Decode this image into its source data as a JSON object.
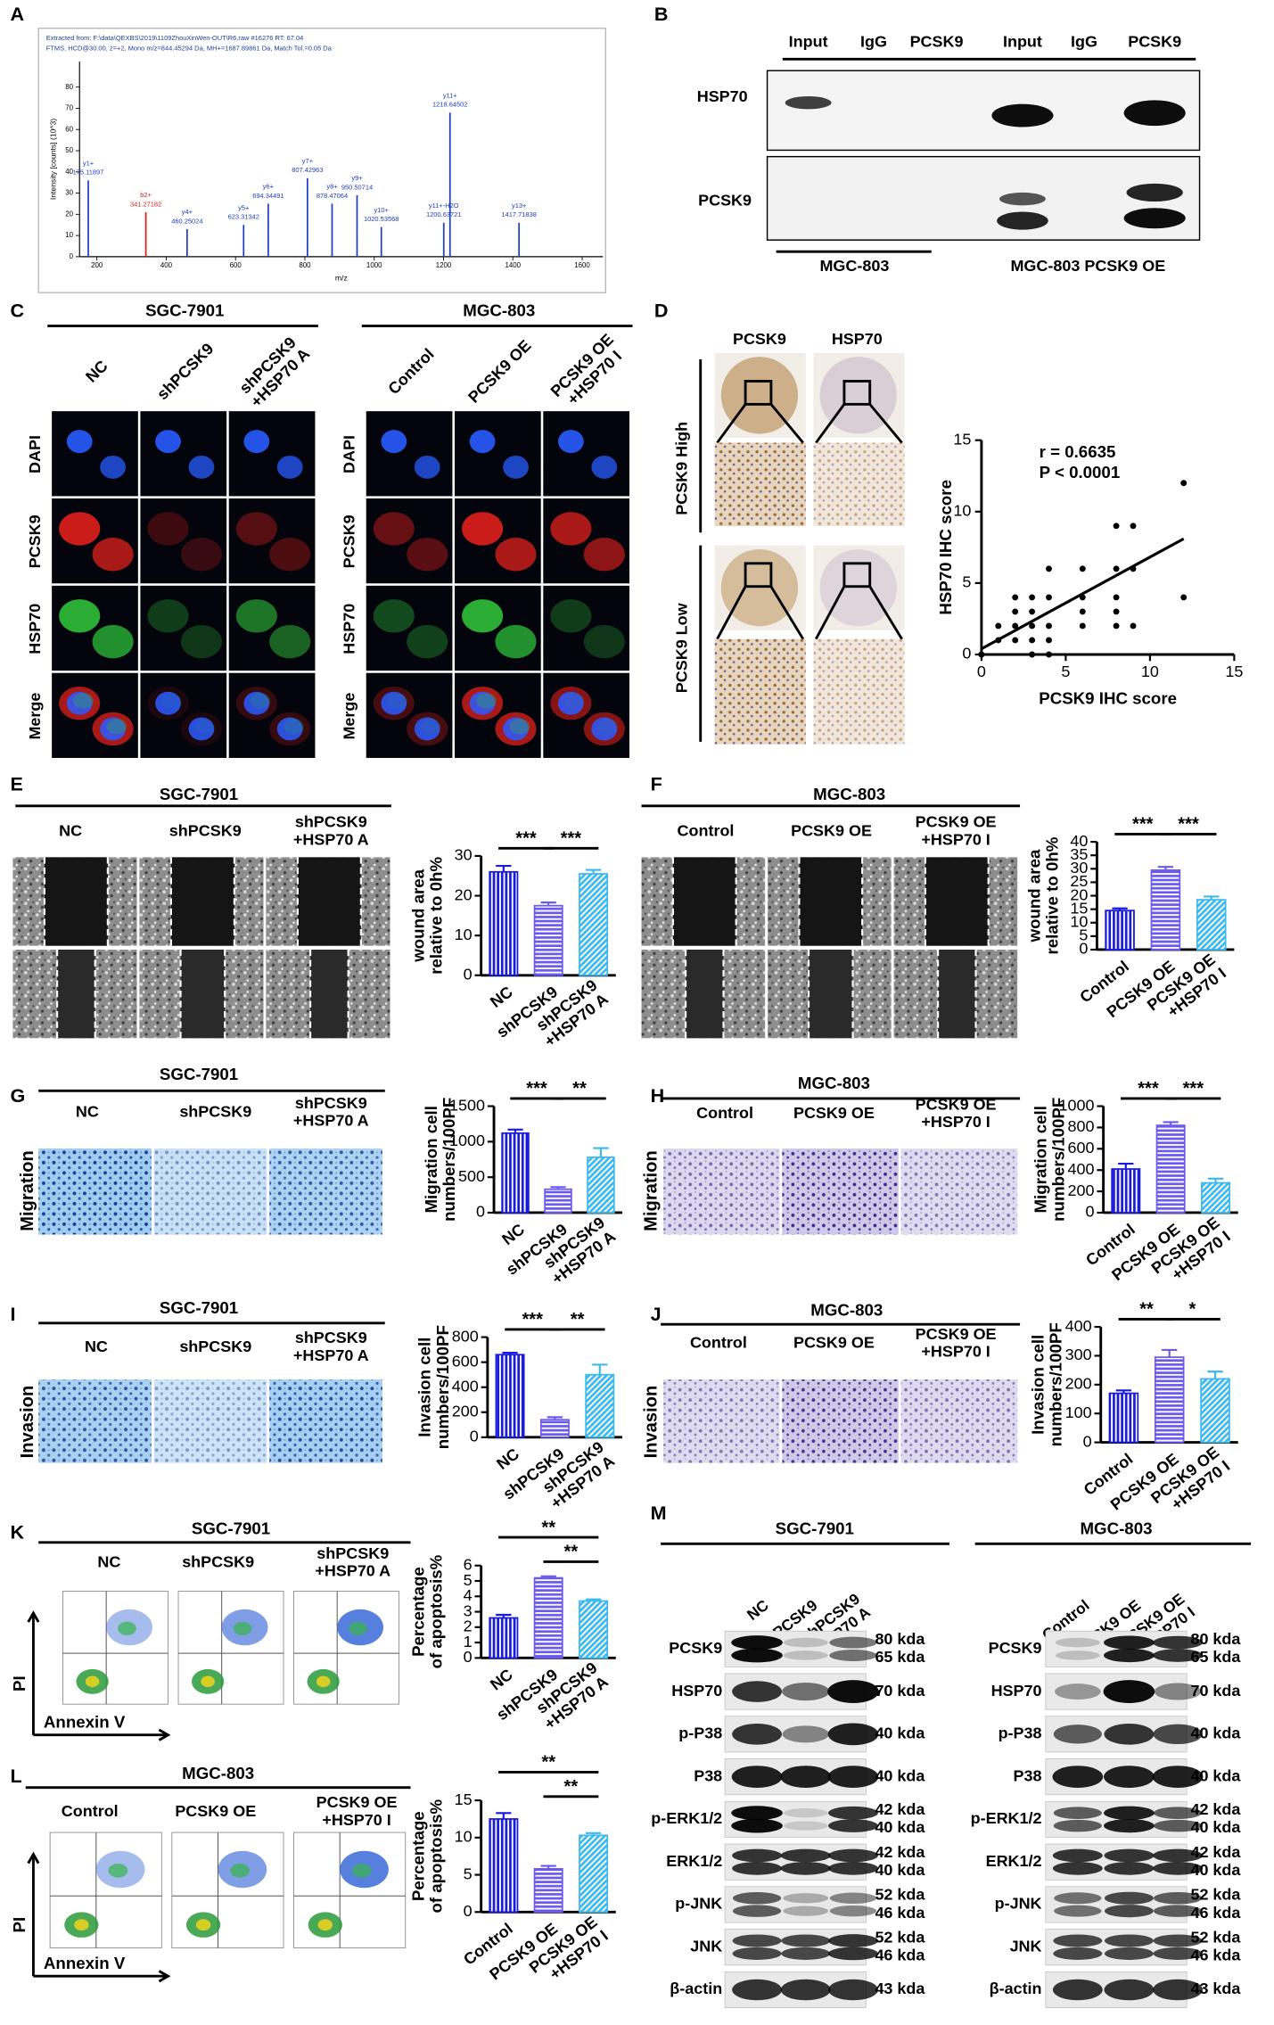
{
  "A": {
    "letter": "A",
    "header": [
      "Extracted from: F:\\data\\QEXBS\\2019\\1109ZhouXinWen-OUT\\R6.raw  #16276  RT: 67.04",
      "FTMS, HCD@30.00, z=+2, Mono m/z=844.45294 Da, MH+=1687.89861 Da, Match Tol.=0.05 Da"
    ],
    "ylabel": "Intensity [counts] (10^3)",
    "xlabel": "m/z",
    "xlim": [
      150,
      1660
    ],
    "ylim": [
      0,
      92
    ],
    "xticks": [
      200,
      400,
      600,
      800,
      1000,
      1200,
      1400,
      1600
    ],
    "yticks": [
      0,
      10,
      20,
      30,
      40,
      50,
      60,
      70,
      80
    ],
    "peaks": [
      {
        "label": "y1+",
        "mz": 175.11897,
        "intensity": 36,
        "color": "#1f3fbf"
      },
      {
        "label": "b2+",
        "mz": 341.27182,
        "intensity": 21,
        "color": "#d62020"
      },
      {
        "label": "y4+",
        "mz": 460.25024,
        "intensity": 13,
        "color": "#1f3fbf"
      },
      {
        "label": "y5+",
        "mz": 623.31342,
        "intensity": 15,
        "color": "#1f3fbf"
      },
      {
        "label": "y6+",
        "mz": 694.34491,
        "intensity": 25,
        "color": "#1f3fbf"
      },
      {
        "label": "y7+",
        "mz": 807.42963,
        "intensity": 37,
        "color": "#1f3fbf"
      },
      {
        "label": "y8+",
        "mz": 878.47064,
        "intensity": 25,
        "color": "#1f3fbf"
      },
      {
        "label": "y9+",
        "mz": 950.50714,
        "intensity": 29,
        "color": "#1f3fbf"
      },
      {
        "label": "y10+",
        "mz": 1020.53568,
        "intensity": 14,
        "color": "#1f3fbf"
      },
      {
        "label": "y11+-H2O",
        "mz": 1200.63721,
        "intensity": 16,
        "color": "#1f3fbf"
      },
      {
        "label": "y11+",
        "mz": 1218.64502,
        "intensity": 68,
        "color": "#1f3fbf"
      },
      {
        "label": "y13+",
        "mz": 1417.71838,
        "intensity": 16,
        "color": "#1f3fbf"
      }
    ]
  },
  "B": {
    "letter": "B",
    "lanes": [
      "Input",
      "IgG",
      "PCSK9",
      "Input",
      "IgG",
      "PCSK9"
    ],
    "rows": [
      "HSP70",
      "PCSK9"
    ],
    "groups": [
      "MGC-803",
      "MGC-803 PCSK9 OE"
    ]
  },
  "C": {
    "letter": "C",
    "groups": [
      {
        "cell_line": "SGC-7901",
        "columns": [
          "NC",
          "shPCSK9",
          "shPCSK9 +HSP70 A"
        ]
      },
      {
        "cell_line": "MGC-803",
        "columns": [
          "Control",
          "PCSK9 OE",
          "PCSK9 OE +HSP70 I"
        ]
      }
    ],
    "rows": [
      "DAPI",
      "PCSK9",
      "HSP70",
      "Merge"
    ]
  },
  "D": {
    "letter": "D",
    "columns": [
      "PCSK9",
      "HSP70"
    ],
    "rows": [
      "PCSK9 High",
      "PCSK9 Low"
    ],
    "chart_data": {
      "type": "scatter",
      "annotations": [
        "r = 0.6635",
        "P < 0.0001"
      ],
      "x_label": "PCSK9 IHC score",
      "y_label": "HSP70 IHC score",
      "xlim": [
        0,
        15
      ],
      "ylim": [
        0,
        15
      ],
      "xticks": [
        0,
        5,
        10,
        15
      ],
      "yticks": [
        0,
        5,
        10,
        15
      ],
      "color": "#000000",
      "x": [
        0,
        1,
        1,
        2,
        2,
        2,
        2,
        3,
        3,
        3,
        3,
        3,
        4,
        4,
        4,
        4,
        4,
        6,
        6,
        6,
        6,
        8,
        8,
        8,
        8,
        8,
        9,
        9,
        9,
        12,
        12
      ],
      "y": [
        0,
        1,
        2,
        1,
        2,
        3,
        4,
        0,
        1,
        2,
        3,
        4,
        0,
        1,
        2,
        4,
        6,
        2,
        3,
        4,
        6,
        2,
        3,
        4,
        6,
        9,
        2,
        6,
        9,
        4,
        12
      ],
      "fit_x": [
        0,
        12
      ],
      "fit_y": [
        0.4,
        8.1
      ]
    }
  },
  "E": {
    "letter": "E",
    "cell_line": "SGC-7901",
    "chart_data": {
      "type": "bar",
      "y_label": [
        "wound area",
        "relative to 0h%"
      ],
      "categories": [
        "NC",
        "shPCSK9",
        "shPCSK9 +HSP70 A"
      ],
      "values": [
        26,
        17.5,
        25.5
      ],
      "errors": [
        1.5,
        0.8,
        1
      ],
      "ylim": [
        0,
        30
      ],
      "yticks": [
        0,
        10,
        20,
        30
      ],
      "colors": [
        "#1a1adb",
        "#6a5af0",
        "#3cb8f0"
      ],
      "significance": [
        "***",
        "***"
      ]
    }
  },
  "F": {
    "letter": "F",
    "cell_line": "MGC-803",
    "chart_data": {
      "type": "bar",
      "y_label": [
        "wound area",
        "relative to 0h%"
      ],
      "categories": [
        "Control",
        "PCSK9 OE",
        "PCSK9 OE +HSP70 I"
      ],
      "values": [
        14.5,
        29.5,
        18.5
      ],
      "errors": [
        0.8,
        1.2,
        1.2
      ],
      "ylim": [
        0,
        40
      ],
      "yticks": [
        0,
        5,
        10,
        15,
        20,
        25,
        30,
        35,
        40
      ],
      "colors": [
        "#1a1adb",
        "#6a5af0",
        "#3cb8f0"
      ],
      "significance": [
        "***",
        "***"
      ]
    }
  },
  "G": {
    "letter": "G",
    "cell_line": "SGC-7901",
    "row_label": "Migration",
    "chart_data": {
      "type": "bar",
      "y_label": [
        "Migration cell",
        "numbers/100PF"
      ],
      "categories": [
        "NC",
        "shPCSK9",
        "shPCSK9 +HSP70 A"
      ],
      "values": [
        1120,
        330,
        780
      ],
      "errors": [
        50,
        30,
        130
      ],
      "ylim": [
        0,
        1500
      ],
      "yticks": [
        0,
        500,
        1000,
        1500
      ],
      "colors": [
        "#1a1adb",
        "#6a5af0",
        "#3cb8f0"
      ],
      "significance": [
        "***",
        "**"
      ]
    }
  },
  "H": {
    "letter": "H",
    "cell_line": "MGC-803",
    "row_label": "Migration",
    "chart_data": {
      "type": "bar",
      "y_label": [
        "Migration cell",
        "numbers/100PF"
      ],
      "categories": [
        "Control",
        "PCSK9 OE",
        "PCSK9 OE +HSP70 I"
      ],
      "values": [
        410,
        820,
        280
      ],
      "errors": [
        50,
        30,
        40
      ],
      "ylim": [
        0,
        1000
      ],
      "yticks": [
        0,
        200,
        400,
        600,
        800,
        1000
      ],
      "colors": [
        "#1a1adb",
        "#6a5af0",
        "#3cb8f0"
      ],
      "significance": [
        "***",
        "***"
      ]
    }
  },
  "I": {
    "letter": "I",
    "cell_line": "SGC-7901",
    "row_label": "Invasion",
    "chart_data": {
      "type": "bar",
      "y_label": [
        "Invasion cell",
        "numbers/100PF"
      ],
      "categories": [
        "NC",
        "shPCSK9",
        "shPCSK9 +HSP70 A"
      ],
      "values": [
        660,
        140,
        500
      ],
      "errors": [
        15,
        20,
        80
      ],
      "ylim": [
        0,
        800
      ],
      "yticks": [
        0,
        200,
        400,
        600,
        800
      ],
      "colors": [
        "#1a1adb",
        "#6a5af0",
        "#3cb8f0"
      ],
      "significance": [
        "***",
        "**"
      ]
    }
  },
  "J": {
    "letter": "J",
    "cell_line": "MGC-803",
    "row_label": "Invasion",
    "chart_data": {
      "type": "bar",
      "y_label": [
        "Invasion cell",
        "numbers/100PF"
      ],
      "categories": [
        "Control",
        "PCSK9 OE",
        "PCSK9 OE +HSP70 I"
      ],
      "values": [
        170,
        295,
        220
      ],
      "errors": [
        10,
        25,
        25
      ],
      "ylim": [
        0,
        400
      ],
      "yticks": [
        0,
        100,
        200,
        300,
        400
      ],
      "colors": [
        "#1a1adb",
        "#6a5af0",
        "#3cb8f0"
      ],
      "significance": [
        "**",
        "*"
      ]
    }
  },
  "K": {
    "letter": "K",
    "cell_line": "SGC-7901",
    "axes": [
      "PI",
      "Annexin V"
    ],
    "chart_data": {
      "type": "bar",
      "y_label": [
        "Percentage",
        "of apoptosis%"
      ],
      "categories": [
        "NC",
        "shPCSK9",
        "shPCSK9 +HSP70 A"
      ],
      "values": [
        2.6,
        5.2,
        3.7
      ],
      "errors": [
        0.2,
        0.1,
        0.1
      ],
      "ylim": [
        0,
        6
      ],
      "yticks": [
        0,
        1,
        2,
        3,
        4,
        5,
        6
      ],
      "colors": [
        "#1a1adb",
        "#6a5af0",
        "#3cb8f0"
      ],
      "significance": [
        "**",
        "**"
      ]
    }
  },
  "L": {
    "letter": "L",
    "cell_line": "MGC-803",
    "axes": [
      "PI",
      "Annexin V"
    ],
    "chart_data": {
      "type": "bar",
      "y_label": [
        "Percentage",
        "of apoptosis%"
      ],
      "categories": [
        "Control",
        "PCSK9 OE",
        "PCSK9 OE +HSP70 I"
      ],
      "values": [
        12.5,
        5.8,
        10.3
      ],
      "errors": [
        0.8,
        0.4,
        0.3
      ],
      "ylim": [
        0,
        15
      ],
      "yticks": [
        0,
        5,
        10,
        15
      ],
      "colors": [
        "#1a1adb",
        "#6a5af0",
        "#3cb8f0"
      ],
      "significance": [
        "**",
        "**"
      ]
    }
  },
  "M": {
    "letter": "M",
    "groups": [
      {
        "cell_line": "SGC-7901",
        "columns": [
          "NC",
          "shPCSK9",
          "shPCSK9 +HSP70 A"
        ]
      },
      {
        "cell_line": "MGC-803",
        "columns": [
          "Control",
          "PCSK9 OE",
          "PCSK9 OE +HSP70 I"
        ]
      }
    ],
    "rows": [
      {
        "protein": "PCSK9",
        "sizes": [
          "80 kda",
          "65 kda"
        ]
      },
      {
        "protein": "HSP70",
        "sizes": [
          "70 kda"
        ]
      },
      {
        "protein": "p-P38",
        "sizes": [
          "40 kda"
        ]
      },
      {
        "protein": "P38",
        "sizes": [
          "40 kda"
        ]
      },
      {
        "protein": "p-ERK1/2",
        "sizes": [
          "42 kda",
          "40 kda"
        ]
      },
      {
        "protein": "ERK1/2",
        "sizes": [
          "42 kda",
          "40 kda"
        ]
      },
      {
        "protein": "p-JNK",
        "sizes": [
          "52 kda",
          "46 kda"
        ]
      },
      {
        "protein": "JNK",
        "sizes": [
          "52 kda",
          "46 kda"
        ]
      },
      {
        "protein": "β-actin",
        "sizes": [
          "43 kda"
        ]
      }
    ]
  }
}
